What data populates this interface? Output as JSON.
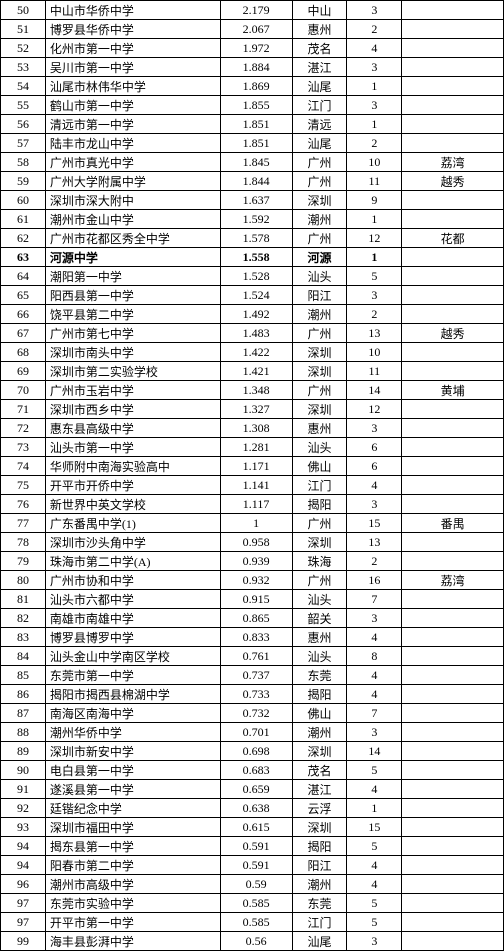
{
  "rows": [
    {
      "rank": "50",
      "school": "中山市华侨中学",
      "score": "2.179",
      "city": "中山",
      "count": "3",
      "district": ""
    },
    {
      "rank": "51",
      "school": "博罗县华侨中学",
      "score": "2.067",
      "city": "惠州",
      "count": "2",
      "district": ""
    },
    {
      "rank": "52",
      "school": "化州市第一中学",
      "score": "1.972",
      "city": "茂名",
      "count": "4",
      "district": ""
    },
    {
      "rank": "53",
      "school": "吴川市第一中学",
      "score": "1.884",
      "city": "湛江",
      "count": "3",
      "district": ""
    },
    {
      "rank": "54",
      "school": "汕尾市林伟华中学",
      "score": "1.869",
      "city": "汕尾",
      "count": "1",
      "district": ""
    },
    {
      "rank": "55",
      "school": "鹤山市第一中学",
      "score": "1.855",
      "city": "江门",
      "count": "3",
      "district": ""
    },
    {
      "rank": "56",
      "school": "清远市第一中学",
      "score": "1.851",
      "city": "清远",
      "count": "1",
      "district": ""
    },
    {
      "rank": "57",
      "school": "陆丰市龙山中学",
      "score": "1.851",
      "city": "汕尾",
      "count": "2",
      "district": ""
    },
    {
      "rank": "58",
      "school": "广州市真光中学",
      "score": "1.845",
      "city": "广州",
      "count": "10",
      "district": "荔湾"
    },
    {
      "rank": "59",
      "school": "广州大学附属中学",
      "score": "1.844",
      "city": "广州",
      "count": "11",
      "district": "越秀"
    },
    {
      "rank": "60",
      "school": "深圳市深大附中",
      "score": "1.637",
      "city": "深圳",
      "count": "9",
      "district": ""
    },
    {
      "rank": "61",
      "school": "潮州市金山中学",
      "score": "1.592",
      "city": "潮州",
      "count": "1",
      "district": ""
    },
    {
      "rank": "62",
      "school": "广州市花都区秀全中学",
      "score": "1.578",
      "city": "广州",
      "count": "12",
      "district": "花都"
    },
    {
      "rank": "63",
      "school": "河源中学",
      "score": "1.558",
      "city": "河源",
      "count": "1",
      "district": "",
      "bold": true
    },
    {
      "rank": "64",
      "school": "潮阳第一中学",
      "score": "1.528",
      "city": "汕头",
      "count": "5",
      "district": ""
    },
    {
      "rank": "65",
      "school": "阳西县第一中学",
      "score": "1.524",
      "city": "阳江",
      "count": "3",
      "district": ""
    },
    {
      "rank": "66",
      "school": "饶平县第二中学",
      "score": "1.492",
      "city": "潮州",
      "count": "2",
      "district": ""
    },
    {
      "rank": "67",
      "school": "广州市第七中学",
      "score": "1.483",
      "city": "广州",
      "count": "13",
      "district": "越秀"
    },
    {
      "rank": "68",
      "school": "深圳市南头中学",
      "score": "1.422",
      "city": "深圳",
      "count": "10",
      "district": ""
    },
    {
      "rank": "69",
      "school": "深圳市第二实验学校",
      "score": "1.421",
      "city": "深圳",
      "count": "11",
      "district": ""
    },
    {
      "rank": "70",
      "school": "广州市玉岩中学",
      "score": "1.348",
      "city": "广州",
      "count": "14",
      "district": "黄埔"
    },
    {
      "rank": "71",
      "school": "深圳市西乡中学",
      "score": "1.327",
      "city": "深圳",
      "count": "12",
      "district": ""
    },
    {
      "rank": "72",
      "school": "惠东县高级中学",
      "score": "1.308",
      "city": "惠州",
      "count": "3",
      "district": ""
    },
    {
      "rank": "73",
      "school": "汕头市第一中学",
      "score": "1.281",
      "city": "汕头",
      "count": "6",
      "district": ""
    },
    {
      "rank": "74",
      "school": "华师附中南海实验高中",
      "score": "1.171",
      "city": "佛山",
      "count": "6",
      "district": ""
    },
    {
      "rank": "75",
      "school": "开平市开侨中学",
      "score": "1.141",
      "city": "江门",
      "count": "4",
      "district": ""
    },
    {
      "rank": "76",
      "school": "新世界中英文学校",
      "score": "1.117",
      "city": "揭阳",
      "count": "3",
      "district": ""
    },
    {
      "rank": "77",
      "school": "广东番禺中学(1)",
      "score": "1",
      "city": "广州",
      "count": "15",
      "district": "番禺"
    },
    {
      "rank": "78",
      "school": "深圳市沙头角中学",
      "score": "0.958",
      "city": "深圳",
      "count": "13",
      "district": ""
    },
    {
      "rank": "79",
      "school": "珠海市第二中学(A)",
      "score": "0.939",
      "city": "珠海",
      "count": "2",
      "district": ""
    },
    {
      "rank": "80",
      "school": "广州市协和中学",
      "score": "0.932",
      "city": "广州",
      "count": "16",
      "district": "荔湾"
    },
    {
      "rank": "81",
      "school": "汕头市六都中学",
      "score": "0.915",
      "city": "汕头",
      "count": "7",
      "district": ""
    },
    {
      "rank": "82",
      "school": "南雄市南雄中学",
      "score": "0.865",
      "city": "韶关",
      "count": "3",
      "district": ""
    },
    {
      "rank": "83",
      "school": "博罗县博罗中学",
      "score": "0.833",
      "city": "惠州",
      "count": "4",
      "district": ""
    },
    {
      "rank": "84",
      "school": "汕头金山中学南区学校",
      "score": "0.761",
      "city": "汕头",
      "count": "8",
      "district": ""
    },
    {
      "rank": "85",
      "school": "东莞市第一中学",
      "score": "0.737",
      "city": "东莞",
      "count": "4",
      "district": ""
    },
    {
      "rank": "86",
      "school": "揭阳市揭西县棉湖中学",
      "score": "0.733",
      "city": "揭阳",
      "count": "4",
      "district": ""
    },
    {
      "rank": "87",
      "school": "南海区南海中学",
      "score": "0.732",
      "city": "佛山",
      "count": "7",
      "district": ""
    },
    {
      "rank": "88",
      "school": "潮州华侨中学",
      "score": "0.701",
      "city": "潮州",
      "count": "3",
      "district": ""
    },
    {
      "rank": "89",
      "school": "深圳市新安中学",
      "score": "0.698",
      "city": "深圳",
      "count": "14",
      "district": ""
    },
    {
      "rank": "90",
      "school": "电白县第一中学",
      "score": "0.683",
      "city": "茂名",
      "count": "5",
      "district": ""
    },
    {
      "rank": "91",
      "school": "遂溪县第一中学",
      "score": "0.659",
      "city": "湛江",
      "count": "4",
      "district": ""
    },
    {
      "rank": "92",
      "school": "廷锴纪念中学",
      "score": "0.638",
      "city": "云浮",
      "count": "1",
      "district": ""
    },
    {
      "rank": "93",
      "school": "深圳市福田中学",
      "score": "0.615",
      "city": "深圳",
      "count": "15",
      "district": ""
    },
    {
      "rank": "94",
      "school": "揭东县第一中学",
      "score": "0.591",
      "city": "揭阳",
      "count": "5",
      "district": ""
    },
    {
      "rank": "94",
      "school": "阳春市第二中学",
      "score": "0.591",
      "city": "阳江",
      "count": "4",
      "district": ""
    },
    {
      "rank": "96",
      "school": "潮州市高级中学",
      "score": "0.59",
      "city": "潮州",
      "count": "4",
      "district": ""
    },
    {
      "rank": "97",
      "school": "东莞市实验中学",
      "score": "0.585",
      "city": "东莞",
      "count": "5",
      "district": ""
    },
    {
      "rank": "97",
      "school": "开平市第一中学",
      "score": "0.585",
      "city": "江门",
      "count": "5",
      "district": ""
    },
    {
      "rank": "99",
      "school": "海丰县彭湃中学",
      "score": "0.56",
      "city": "汕尾",
      "count": "3",
      "district": ""
    }
  ]
}
